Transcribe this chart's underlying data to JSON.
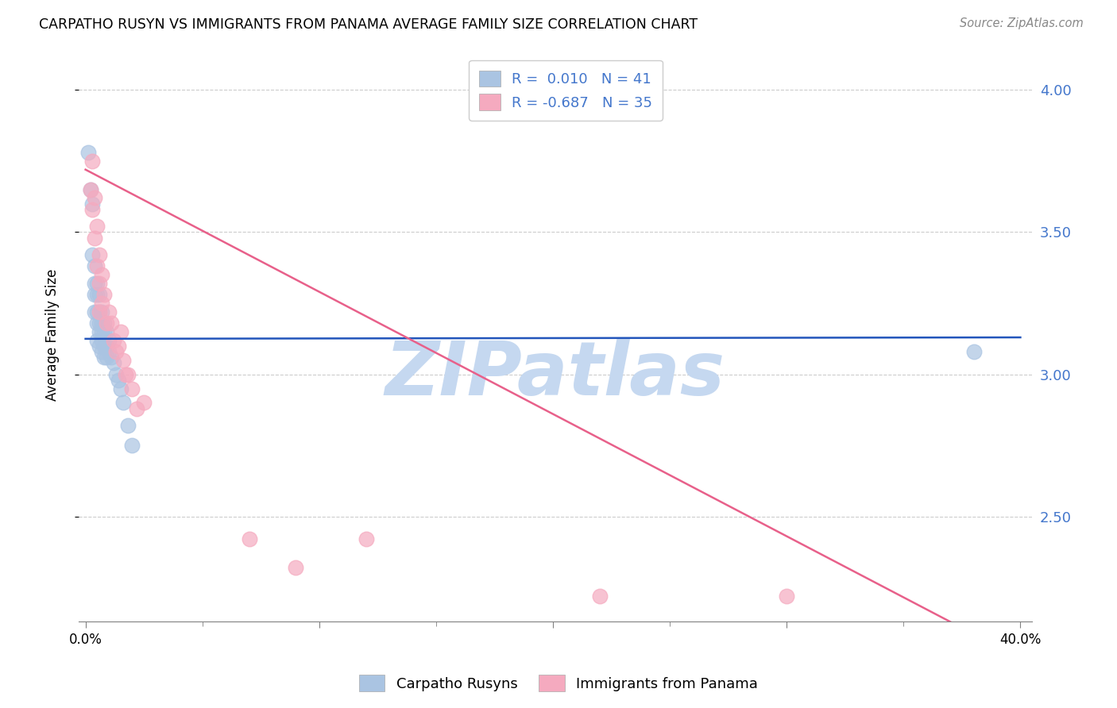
{
  "title": "CARPATHO RUSYN VS IMMIGRANTS FROM PANAMA AVERAGE FAMILY SIZE CORRELATION CHART",
  "source": "Source: ZipAtlas.com",
  "ylabel": "Average Family Size",
  "xlim": [
    -0.003,
    0.405
  ],
  "ylim": [
    2.13,
    4.15
  ],
  "blue_R": 0.01,
  "blue_N": 41,
  "pink_R": -0.687,
  "pink_N": 35,
  "blue_color": "#aac4e2",
  "pink_color": "#f5aabf",
  "blue_line_color": "#2255bb",
  "pink_line_color": "#e8608a",
  "blue_scatter_x": [
    0.001,
    0.002,
    0.003,
    0.003,
    0.004,
    0.004,
    0.004,
    0.004,
    0.005,
    0.005,
    0.005,
    0.005,
    0.005,
    0.006,
    0.006,
    0.006,
    0.006,
    0.006,
    0.007,
    0.007,
    0.007,
    0.007,
    0.007,
    0.008,
    0.008,
    0.008,
    0.008,
    0.009,
    0.009,
    0.009,
    0.01,
    0.01,
    0.011,
    0.012,
    0.013,
    0.014,
    0.015,
    0.016,
    0.018,
    0.02,
    0.38
  ],
  "blue_scatter_y": [
    3.78,
    3.65,
    3.6,
    3.42,
    3.38,
    3.32,
    3.28,
    3.22,
    3.32,
    3.28,
    3.22,
    3.18,
    3.12,
    3.28,
    3.22,
    3.18,
    3.15,
    3.1,
    3.22,
    3.18,
    3.15,
    3.12,
    3.08,
    3.18,
    3.15,
    3.1,
    3.06,
    3.15,
    3.1,
    3.06,
    3.12,
    3.08,
    3.06,
    3.04,
    3.0,
    2.98,
    2.95,
    2.9,
    2.82,
    2.75,
    3.08
  ],
  "pink_scatter_x": [
    0.002,
    0.003,
    0.003,
    0.004,
    0.004,
    0.005,
    0.005,
    0.006,
    0.006,
    0.006,
    0.007,
    0.007,
    0.008,
    0.009,
    0.01,
    0.011,
    0.012,
    0.013,
    0.014,
    0.015,
    0.016,
    0.017,
    0.018,
    0.02,
    0.022,
    0.025,
    0.07,
    0.09,
    0.12,
    0.22,
    0.3
  ],
  "pink_scatter_y": [
    3.65,
    3.75,
    3.58,
    3.62,
    3.48,
    3.52,
    3.38,
    3.42,
    3.32,
    3.22,
    3.35,
    3.25,
    3.28,
    3.18,
    3.22,
    3.18,
    3.12,
    3.08,
    3.1,
    3.15,
    3.05,
    3.0,
    3.0,
    2.95,
    2.88,
    2.9,
    2.42,
    2.32,
    2.42,
    2.22,
    2.22
  ],
  "blue_line_x": [
    0.0,
    0.4
  ],
  "blue_line_y": [
    3.125,
    3.13
  ],
  "pink_line_x": [
    0.0,
    0.37
  ],
  "pink_line_y": [
    3.72,
    2.13
  ],
  "watermark": "ZIPatlas",
  "watermark_color": "#c5d8f0",
  "ylabel_ticks": [
    2.5,
    3.0,
    3.5,
    4.0
  ],
  "xtick_major": [
    0.0,
    0.1,
    0.2,
    0.3,
    0.4
  ],
  "xtick_minor": [
    0.05,
    0.15,
    0.25,
    0.35
  ],
  "xtick_labels": [
    "0.0%",
    "",
    "",
    "",
    "40.0%"
  ],
  "grid_color": "#cccccc",
  "background_color": "#ffffff",
  "right_axis_color": "#4477cc",
  "legend_labels": [
    "Carpatho Rusyns",
    "Immigrants from Panama"
  ]
}
